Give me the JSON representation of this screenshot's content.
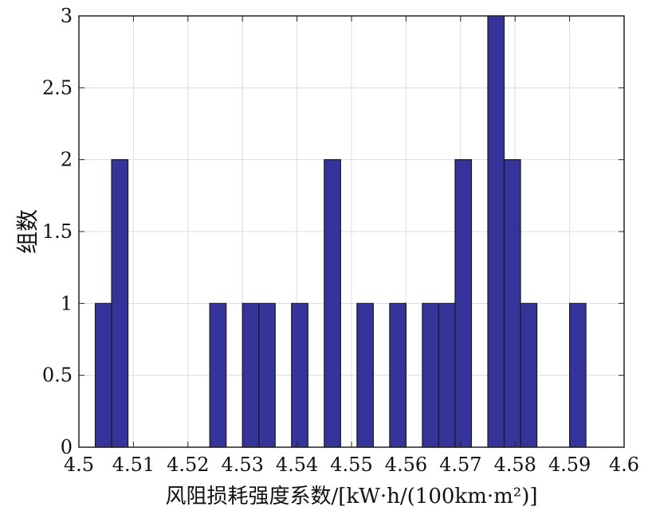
{
  "chart_data": {
    "type": "bar",
    "title": "",
    "xlabel": "风阻损耗强度系数/[kW·h/(100km·m²)]",
    "ylabel": "组数",
    "xlim": [
      4.5,
      4.6
    ],
    "ylim": [
      0,
      3
    ],
    "grid": true,
    "bar_color": "#34349a",
    "xticks": [
      "4.5",
      "4.51",
      "4.52",
      "4.53",
      "4.54",
      "4.55",
      "4.56",
      "4.57",
      "4.58",
      "4.59",
      "4.6"
    ],
    "yticks": [
      "0",
      "0.5",
      "1",
      "1.5",
      "2",
      "2.5",
      "3"
    ],
    "bin_width": 0.003,
    "bins": [
      {
        "x": 4.5045,
        "value": 1
      },
      {
        "x": 4.5075,
        "value": 2
      },
      {
        "x": 4.5105,
        "value": 0
      },
      {
        "x": 4.5135,
        "value": 0
      },
      {
        "x": 4.5165,
        "value": 0
      },
      {
        "x": 4.5195,
        "value": 0
      },
      {
        "x": 4.5225,
        "value": 0
      },
      {
        "x": 4.5255,
        "value": 1
      },
      {
        "x": 4.5285,
        "value": 0
      },
      {
        "x": 4.5315,
        "value": 1
      },
      {
        "x": 4.5345,
        "value": 1
      },
      {
        "x": 4.5375,
        "value": 0
      },
      {
        "x": 4.5405,
        "value": 1
      },
      {
        "x": 4.5435,
        "value": 0
      },
      {
        "x": 4.5465,
        "value": 2
      },
      {
        "x": 4.5495,
        "value": 0
      },
      {
        "x": 4.5525,
        "value": 1
      },
      {
        "x": 4.5555,
        "value": 0
      },
      {
        "x": 4.5585,
        "value": 1
      },
      {
        "x": 4.5615,
        "value": 0
      },
      {
        "x": 4.5645,
        "value": 1
      },
      {
        "x": 4.5675,
        "value": 1
      },
      {
        "x": 4.5705,
        "value": 2
      },
      {
        "x": 4.5735,
        "value": 0
      },
      {
        "x": 4.5765,
        "value": 3
      },
      {
        "x": 4.5795,
        "value": 2
      },
      {
        "x": 4.5825,
        "value": 1
      },
      {
        "x": 4.5855,
        "value": 0
      },
      {
        "x": 4.5885,
        "value": 0
      },
      {
        "x": 4.5915,
        "value": 1
      }
    ]
  }
}
